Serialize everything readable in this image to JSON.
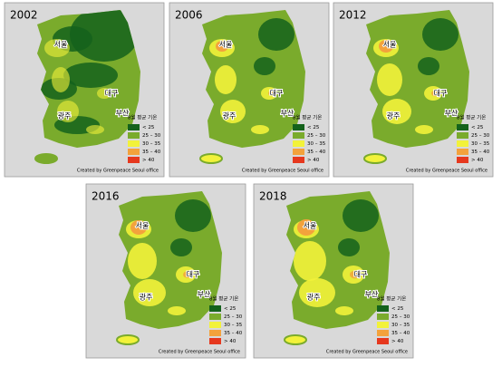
{
  "maps": [
    {
      "year": "2002"
    },
    {
      "year": "2006"
    },
    {
      "year": "2012"
    },
    {
      "year": "2016"
    },
    {
      "year": "2018"
    }
  ],
  "cities": [
    "서울",
    "대구",
    "광주",
    "부산"
  ],
  "legend": {
    "title": "8월 평균 기온",
    "items": [
      {
        "label": "< 25",
        "color": "#14621c"
      },
      {
        "label": "25 – 30",
        "color": "#7aab2c"
      },
      {
        "label": "30 – 35",
        "color": "#f2f23a"
      },
      {
        "label": "35 – 40",
        "color": "#f3a23c"
      },
      {
        "label": "> 40",
        "color": "#e6381e"
      }
    ]
  },
  "credit": "Created by Greenpeace Seoul office"
}
